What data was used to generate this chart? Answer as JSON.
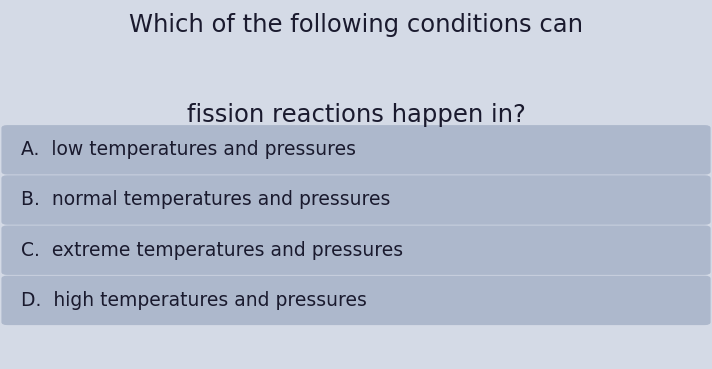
{
  "title_line1": "Which of the following conditions can",
  "title_line2": "fission reactions happen in?",
  "options": [
    "A.  low temperatures and pressures",
    "B.  normal temperatures and pressures",
    "C.  extreme temperatures and pressures",
    "D.  high temperatures and pressures"
  ],
  "background_color": "#d4dae6",
  "option_box_color": "#adb8cc",
  "title_color": "#1a1a2e",
  "option_text_color": "#1a1a2e",
  "title_fontsize": 17.5,
  "option_fontsize": 13.5,
  "fig_width": 7.12,
  "fig_height": 3.69,
  "dpi": 100
}
